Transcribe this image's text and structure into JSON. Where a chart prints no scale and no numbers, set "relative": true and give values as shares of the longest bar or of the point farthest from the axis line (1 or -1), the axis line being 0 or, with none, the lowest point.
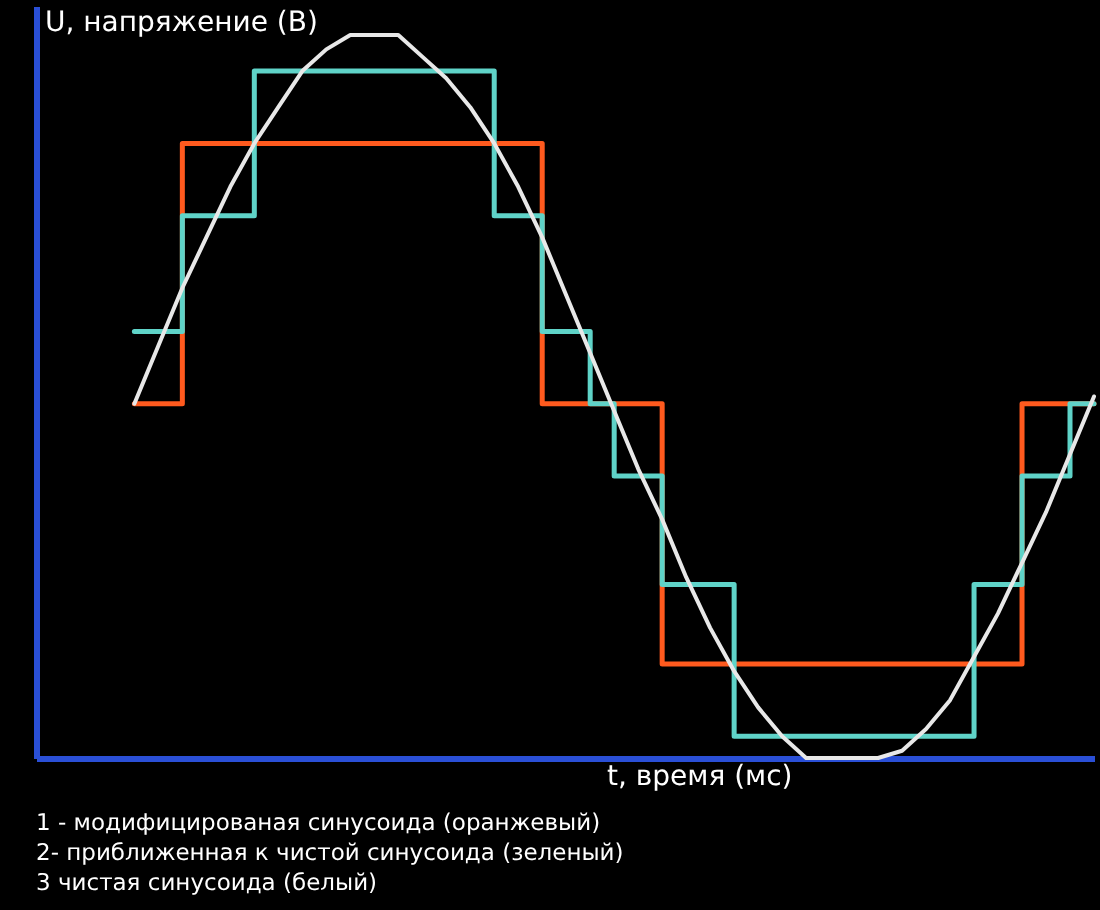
{
  "chart_data": {
    "type": "line",
    "relative": true,
    "xlabel": "t, время (мс)",
    "ylabel": "U, напряжение (В)",
    "categories": [
      null,
      null,
      null,
      null,
      null,
      null,
      null,
      null,
      null,
      null,
      null,
      null,
      null,
      null,
      null,
      null,
      null,
      null,
      null,
      null,
      null,
      null,
      null,
      null,
      null,
      null,
      null,
      null,
      null,
      null,
      null,
      null,
      null,
      null,
      null,
      null,
      null,
      null,
      null,
      null,
      null
    ],
    "series": [
      {
        "type": "step",
        "color": "#ff5a1e",
        "values": [
          0.49,
          0.49,
          0.85,
          0.85,
          0.85,
          0.85,
          0.85,
          0.85,
          0.85,
          0.85,
          0.85,
          0.85,
          0.85,
          0.85,
          0.85,
          0.85,
          0.85,
          0.49,
          0.49,
          0.49,
          0.49,
          0.49,
          0.13,
          0.13,
          0.13,
          0.13,
          0.13,
          0.13,
          0.13,
          0.13,
          0.13,
          0.13,
          0.13,
          0.13,
          0.13,
          0.13,
          0.13,
          0.49,
          0.49,
          0.49,
          0.49
        ]
      },
      {
        "type": "step",
        "color": "#5fd3c8",
        "values": [
          0.59,
          0.59,
          0.75,
          0.75,
          0.75,
          0.95,
          0.95,
          0.95,
          0.95,
          0.95,
          0.95,
          0.95,
          0.95,
          0.95,
          0.95,
          0.75,
          0.75,
          0.59,
          0.59,
          0.49,
          0.39,
          0.39,
          0.24,
          0.24,
          0.24,
          0.03,
          0.03,
          0.03,
          0.03,
          0.03,
          0.03,
          0.03,
          0.03,
          0.03,
          0.03,
          0.24,
          0.24,
          0.39,
          0.39,
          0.49,
          0.49
        ]
      },
      {
        "type": "line",
        "color": "#e8e8e8",
        "values": [
          0.49,
          0.57,
          0.65,
          0.72,
          0.79,
          0.85,
          0.9,
          0.95,
          0.98,
          1.0,
          1.0,
          1.0,
          0.97,
          0.94,
          0.9,
          0.85,
          0.79,
          0.72,
          0.64,
          0.56,
          0.48,
          0.4,
          0.33,
          0.25,
          0.18,
          0.12,
          0.07,
          0.03,
          0.0,
          0.0,
          0.0,
          0.0,
          0.01,
          0.04,
          0.08,
          0.14,
          0.2,
          0.27,
          0.34,
          0.42,
          0.5
        ]
      }
    ],
    "annotations": [
      "1 - модифицированая синусоида (оранжевый)",
      "2- приближенная к чистой синусоида (зеленый)",
      "3 чистая синусоида (белый)"
    ]
  }
}
